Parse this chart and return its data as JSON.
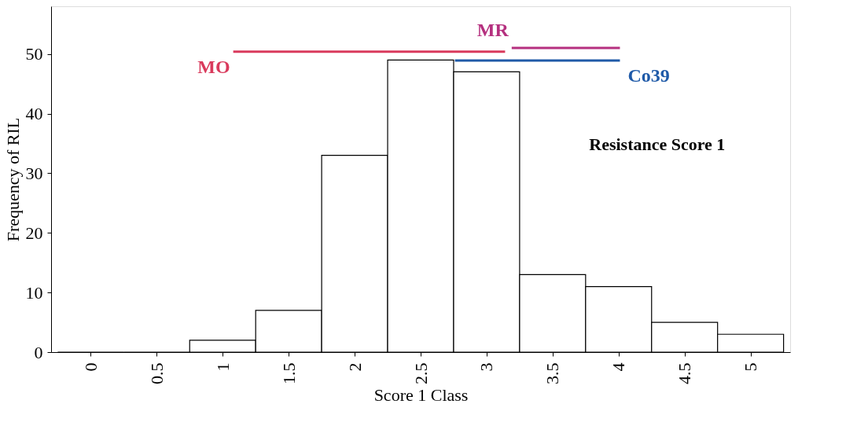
{
  "chart_data": {
    "type": "histogram",
    "xlabel": "Score 1 Class",
    "ylabel": "Frequency of RIL",
    "bins": [
      -0.25,
      0.25,
      0.75,
      1.25,
      1.75,
      2.25,
      2.75,
      3.25,
      3.75,
      4.25,
      4.75,
      5.25
    ],
    "values": [
      0,
      0,
      2,
      7,
      33,
      49,
      47,
      13,
      11,
      5,
      3
    ],
    "color": "#ffffff",
    "xlim": [
      -0.3,
      5.3
    ],
    "xticks": [
      0,
      0.5,
      1,
      1.5,
      2,
      2.5,
      3,
      3.5,
      4,
      4.5,
      5
    ],
    "ylim": [
      0,
      58
    ],
    "yticks": [
      0,
      10,
      20,
      30,
      40,
      50
    ],
    "series": [
      {
        "type": "line",
        "name": "MO",
        "color": "#d93a5c",
        "x": [
          1.08,
          3.14
        ],
        "values": [
          50.4,
          50.4
        ]
      },
      {
        "type": "line",
        "name": "MR",
        "color": "#b5307f",
        "x": [
          3.19,
          4.01
        ],
        "values": [
          51,
          51
        ]
      },
      {
        "type": "line",
        "name": "Co39",
        "color": "#1f5aa8",
        "x": [
          2.76,
          4.01
        ],
        "values": [
          48.9,
          48.9
        ]
      }
    ],
    "annotations": [
      "Resistance Score 1"
    ],
    "grid": false
  }
}
